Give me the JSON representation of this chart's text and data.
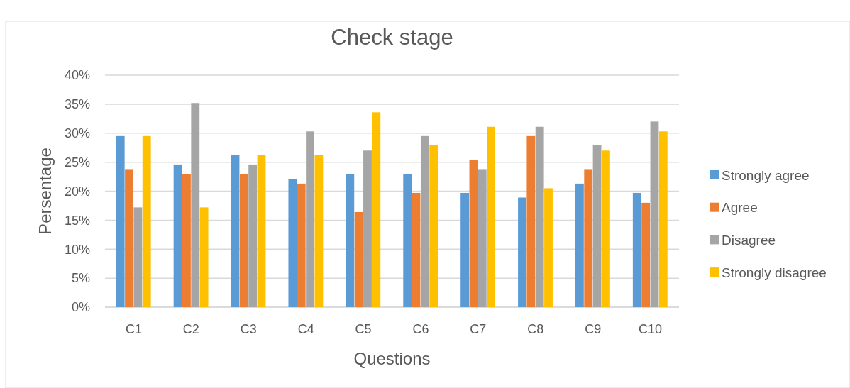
{
  "chart_data": {
    "type": "bar",
    "title": "Check stage",
    "xlabel": "Questions",
    "ylabel": "Persentage",
    "categories": [
      "C1",
      "C2",
      "C3",
      "C4",
      "C5",
      "C6",
      "C7",
      "C8",
      "C9",
      "C10"
    ],
    "series": [
      {
        "name": "Strongly agree",
        "color": "#5b9bd5",
        "values": [
          29.5,
          24.6,
          26.2,
          22.1,
          23.0,
          23.0,
          19.7,
          18.9,
          21.3,
          19.7
        ]
      },
      {
        "name": "Agree",
        "color": "#ed7d31",
        "values": [
          23.8,
          23.0,
          23.0,
          21.3,
          16.4,
          19.7,
          25.4,
          29.5,
          23.8,
          18.0
        ]
      },
      {
        "name": "Disagree",
        "color": "#a5a5a5",
        "values": [
          17.2,
          35.2,
          24.6,
          30.3,
          27.0,
          29.5,
          23.8,
          31.1,
          27.9,
          32.0
        ]
      },
      {
        "name": "Strongly disagree",
        "color": "#ffc000",
        "values": [
          29.5,
          17.2,
          26.2,
          26.2,
          33.6,
          27.9,
          31.1,
          20.5,
          27.0,
          30.3
        ]
      }
    ],
    "ylim": [
      0,
      40
    ],
    "yticks": [
      {
        "value": 0,
        "label": "0%"
      },
      {
        "value": 5,
        "label": "5%"
      },
      {
        "value": 10,
        "label": "10%"
      },
      {
        "value": 15,
        "label": "15%"
      },
      {
        "value": 20,
        "label": "20%"
      },
      {
        "value": 25,
        "label": "25%"
      },
      {
        "value": 30,
        "label": "30%"
      },
      {
        "value": 35,
        "label": "35%"
      },
      {
        "value": 40,
        "label": "40%"
      }
    ],
    "grid": "y",
    "legend": "right"
  }
}
